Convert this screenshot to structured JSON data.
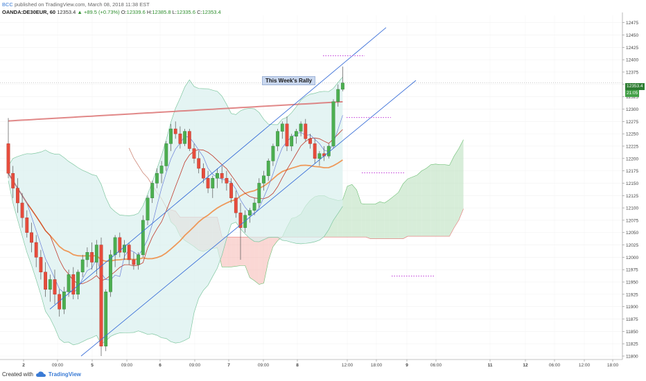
{
  "header": {
    "author": "BCC",
    "publish_text": "published on TradingView.com, March 08, 2018 11:38 EST",
    "symbol": "OANDA:DE30EUR, 60",
    "last": "12353.4",
    "change": "+89.5 (+0.73%)",
    "open_label": "O:",
    "open": "12339.6",
    "high_label": "H:",
    "high": "12385.8",
    "low_label": "L:",
    "low": "12335.6",
    "close_label": "C:",
    "close": "12353.4"
  },
  "footer": {
    "created_with": "Created with",
    "brand": "TradingView"
  },
  "annotation": {
    "text": "This Week's Rally"
  },
  "price_tags": {
    "last": "12353.4",
    "countdown": "21:05"
  },
  "colors": {
    "up": "#4caf50",
    "down": "#e74c3c",
    "channel": "#3a6fd8",
    "ma_long": "#d96a6a",
    "ma_orange": "#f0883e",
    "cloud_bull": "#b7dfb9",
    "cloud_bear": "#f5b7b1",
    "bb_fill": "#d9f0ee",
    "dotted": "#c03ad8"
  },
  "chart_data": {
    "type": "candlestick",
    "y_axis": {
      "ticks": [
        12475,
        12450,
        12425,
        12400,
        12375,
        12350,
        12325,
        12300,
        12275,
        12250,
        12225,
        12200,
        12175,
        12150,
        12125,
        12100,
        12075,
        12050,
        12025,
        12000,
        11975,
        11950,
        11925,
        11900,
        11875,
        11850,
        11825,
        11800
      ],
      "range": [
        11793,
        12490
      ]
    },
    "x_axis": {
      "ticks": [
        "2",
        "09:00",
        "5",
        "09:00",
        "6",
        "09:00",
        "7",
        "09:00",
        "8",
        "12:00",
        "18:00",
        "9",
        "06:00",
        "11",
        "12",
        "06:00",
        "12:00",
        "18:00"
      ]
    },
    "candles": [
      [
        12230,
        12282,
        12160,
        12170
      ],
      [
        12170,
        12185,
        12120,
        12140
      ],
      [
        12140,
        12160,
        12090,
        12110
      ],
      [
        12110,
        12130,
        12060,
        12080
      ],
      [
        12080,
        12095,
        12040,
        12050
      ],
      [
        12050,
        12070,
        12010,
        12030
      ],
      [
        12030,
        12045,
        11980,
        12000
      ],
      [
        12000,
        12015,
        11955,
        11970
      ],
      [
        11970,
        11990,
        11920,
        11935
      ],
      [
        11935,
        11965,
        11910,
        11955
      ],
      [
        11955,
        11975,
        11905,
        11925
      ],
      [
        11925,
        11935,
        11880,
        11895
      ],
      [
        11895,
        11940,
        11885,
        11930
      ],
      [
        11930,
        11975,
        11920,
        11965
      ],
      [
        11965,
        11980,
        11915,
        11925
      ],
      [
        11925,
        11975,
        11915,
        11970
      ],
      [
        11970,
        12005,
        11960,
        11995
      ],
      [
        11995,
        12020,
        11980,
        12010
      ],
      [
        12010,
        12030,
        11975,
        11990
      ],
      [
        11990,
        12035,
        11965,
        12025
      ],
      [
        12025,
        12040,
        11800,
        11820
      ],
      [
        11820,
        11935,
        11810,
        11930
      ],
      [
        11930,
        12015,
        11920,
        12005
      ],
      [
        12005,
        12045,
        11980,
        12040
      ],
      [
        12040,
        12050,
        12000,
        12010
      ],
      [
        12010,
        12035,
        11995,
        12025
      ],
      [
        12025,
        12030,
        11985,
        11995
      ],
      [
        11995,
        12010,
        11975,
        11985
      ],
      [
        11985,
        12010,
        11975,
        12005
      ],
      [
        12005,
        12085,
        12000,
        12075
      ],
      [
        12075,
        12125,
        12065,
        12120
      ],
      [
        12120,
        12155,
        12110,
        12150
      ],
      [
        12150,
        12180,
        12140,
        12170
      ],
      [
        12170,
        12195,
        12150,
        12185
      ],
      [
        12185,
        12235,
        12175,
        12230
      ],
      [
        12230,
        12270,
        12215,
        12260
      ],
      [
        12260,
        12275,
        12240,
        12250
      ],
      [
        12250,
        12265,
        12220,
        12230
      ],
      [
        12230,
        12260,
        12225,
        12255
      ],
      [
        12255,
        12260,
        12215,
        12220
      ],
      [
        12220,
        12230,
        12190,
        12200
      ],
      [
        12200,
        12215,
        12170,
        12180
      ],
      [
        12180,
        12190,
        12150,
        12160
      ],
      [
        12160,
        12175,
        12130,
        12140
      ],
      [
        12140,
        12165,
        12120,
        12160
      ],
      [
        12160,
        12180,
        12140,
        12170
      ],
      [
        12170,
        12185,
        12150,
        12160
      ],
      [
        12160,
        12175,
        12135,
        12150
      ],
      [
        12150,
        12160,
        12110,
        12120
      ],
      [
        12120,
        12135,
        12080,
        12090
      ],
      [
        12090,
        12110,
        11995,
        12060
      ],
      [
        12060,
        12095,
        12050,
        12085
      ],
      [
        12085,
        12100,
        12070,
        12095
      ],
      [
        12095,
        12120,
        12085,
        12110
      ],
      [
        12110,
        12160,
        12100,
        12150
      ],
      [
        12150,
        12175,
        12135,
        12165
      ],
      [
        12165,
        12200,
        12155,
        12195
      ],
      [
        12195,
        12230,
        12185,
        12225
      ],
      [
        12225,
        12260,
        12215,
        12255
      ],
      [
        12255,
        12275,
        12240,
        12270
      ],
      [
        12270,
        12285,
        12215,
        12225
      ],
      [
        12225,
        12250,
        12215,
        12245
      ],
      [
        12245,
        12260,
        12230,
        12255
      ],
      [
        12255,
        12275,
        12245,
        12270
      ],
      [
        12270,
        12280,
        12235,
        12240
      ],
      [
        12240,
        12250,
        12220,
        12230
      ],
      [
        12230,
        12240,
        12190,
        12200
      ],
      [
        12200,
        12215,
        12185,
        12210
      ],
      [
        12210,
        12225,
        12195,
        12205
      ],
      [
        12205,
        12230,
        12200,
        12225
      ],
      [
        12225,
        12320,
        12220,
        12315
      ],
      [
        12315,
        12350,
        12305,
        12340
      ],
      [
        12340,
        12386,
        12336,
        12353
      ]
    ],
    "annotations": [
      "This Week's Rally"
    ]
  }
}
